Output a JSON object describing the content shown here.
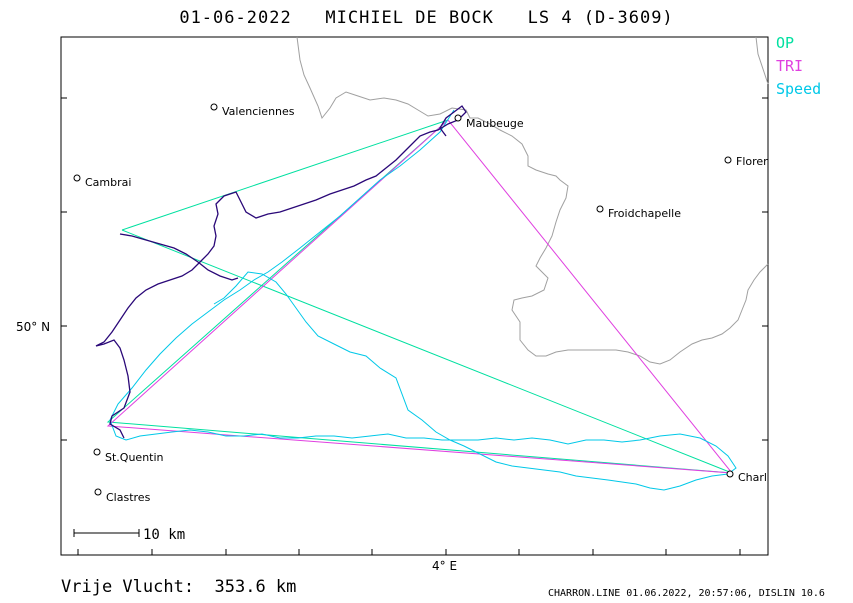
{
  "header": {
    "title": "01-06-2022   MICHIEL DE BOCK   LS 4 (D-3609)"
  },
  "legend": {
    "items": [
      {
        "label": "OP",
        "color": "#00e0a0"
      },
      {
        "label": "TRI",
        "color": "#e040e0"
      },
      {
        "label": "Speed",
        "color": "#00c8e8"
      }
    ]
  },
  "axes": {
    "lat_label": "50° N",
    "lon_label": "4° E"
  },
  "scale_bar": {
    "label": "10 km"
  },
  "places": [
    {
      "name": "Valenciennes"
    },
    {
      "name": "Maubeuge"
    },
    {
      "name": "Cambrai"
    },
    {
      "name": "Florennes"
    },
    {
      "name": "Froidchapelle"
    },
    {
      "name": "St.Quentin"
    },
    {
      "name": "Clastres"
    },
    {
      "name": "Charleville"
    }
  ],
  "footer": {
    "distance_text": "Vrije Vlucht:  353.6 km",
    "credits": "CHARRON.LINE 01.06.2022, 20:57:06, DISLIN 10.6"
  },
  "colors": {
    "frame": "#000000",
    "border": "#a0a0a0",
    "track": "#2a0878",
    "op": "#00e0a0",
    "tri": "#e040e0",
    "speed": "#00c8e8"
  }
}
